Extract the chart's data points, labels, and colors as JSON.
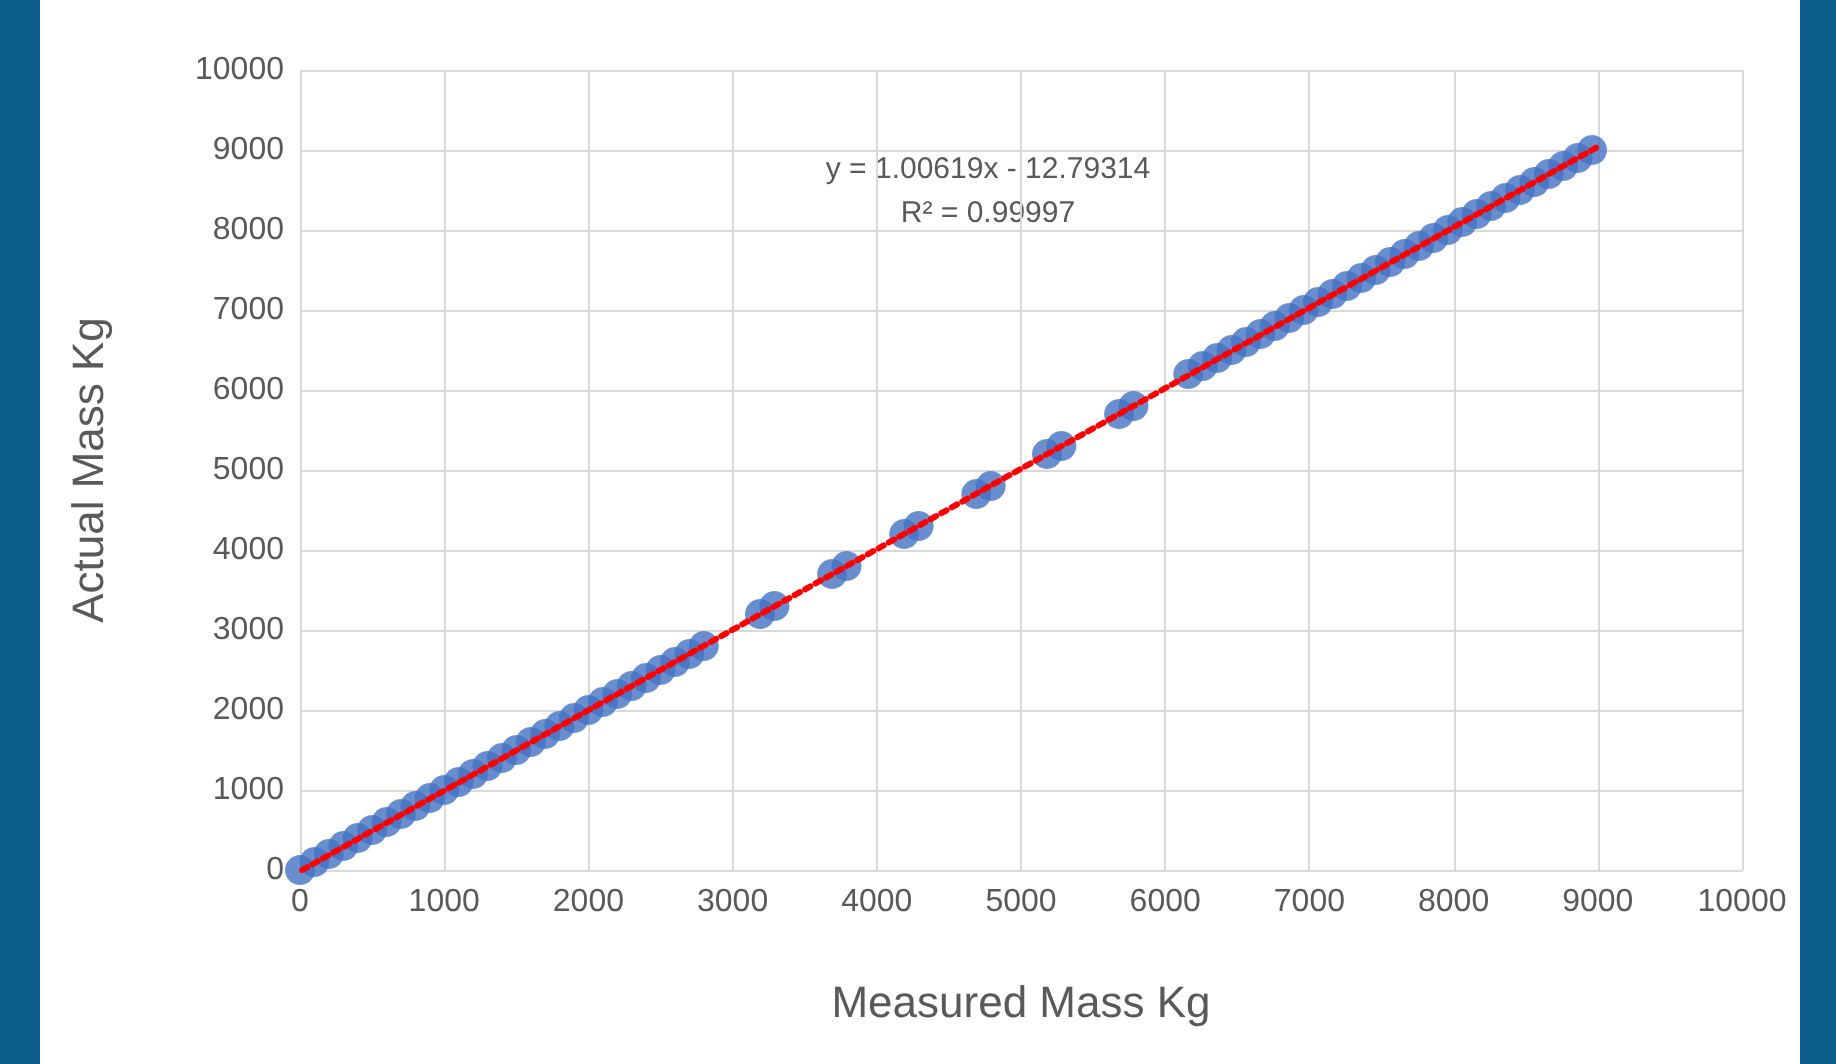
{
  "chart_data": {
    "type": "scatter",
    "xlabel": "Measured Mass Kg",
    "ylabel": "Actual Mass Kg",
    "xlim": [
      0,
      10000
    ],
    "xticks": [
      0,
      1000,
      2000,
      3000,
      4000,
      5000,
      6000,
      7000,
      8000,
      9000,
      10000
    ],
    "ylim": [
      0,
      10000
    ],
    "yticks": [
      0,
      1000,
      2000,
      3000,
      4000,
      5000,
      6000,
      7000,
      8000,
      9000,
      10000
    ],
    "grid": true,
    "marker": "circle",
    "annotations": [
      "y = 1.00619x - 12.79314",
      "R² = 0.99997"
    ],
    "series": [
      {
        "color": "#4472c4",
        "x": [
          0,
          100,
          200,
          300,
          400,
          500,
          600,
          700,
          800,
          900,
          1000,
          1100,
          1200,
          1300,
          1400,
          1500,
          1600,
          1700,
          1800,
          1900,
          2000,
          2100,
          2200,
          2300,
          2400,
          2500,
          2600,
          2700,
          2800,
          3190,
          3290,
          3690,
          3790,
          4190,
          4290,
          4690,
          4790,
          5180,
          5280,
          5680,
          5780,
          6160,
          6260,
          6360,
          6460,
          6560,
          6660,
          6760,
          6860,
          6960,
          7060,
          7160,
          7260,
          7360,
          7460,
          7560,
          7660,
          7760,
          7860,
          7960,
          8060,
          8160,
          8260,
          8360,
          8460,
          8560,
          8660,
          8760,
          8860,
          8960
        ],
        "values": [
          0,
          100,
          200,
          300,
          400,
          500,
          600,
          700,
          800,
          900,
          1000,
          1100,
          1200,
          1300,
          1400,
          1500,
          1600,
          1700,
          1800,
          1900,
          2000,
          2100,
          2200,
          2300,
          2400,
          2500,
          2600,
          2700,
          2800,
          3200,
          3300,
          3700,
          3800,
          4200,
          4300,
          4700,
          4800,
          5200,
          5300,
          5700,
          5800,
          6200,
          6300,
          6400,
          6500,
          6600,
          6700,
          6800,
          6900,
          7000,
          7100,
          7200,
          7300,
          7400,
          7500,
          7600,
          7700,
          7800,
          7900,
          8000,
          8100,
          8200,
          8300,
          8400,
          8500,
          8600,
          8700,
          8800,
          8900,
          9000
        ]
      },
      {
        "type": "line",
        "color": "#ff0000",
        "line_style": "dotted",
        "marker": "none",
        "x": [
          15,
          8990
        ],
        "values": [
          0,
          9030
        ]
      }
    ]
  }
}
